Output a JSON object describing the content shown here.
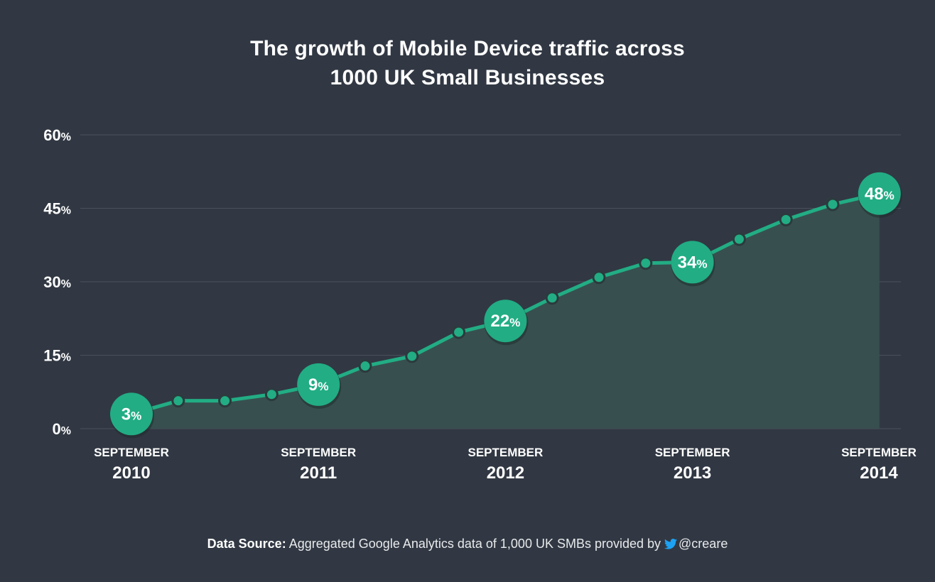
{
  "title_line1": "The growth of Mobile Device traffic across",
  "title_line2": "1000 UK Small Businesses",
  "footer": {
    "label": "Data Source:",
    "text": " Aggregated Google Analytics data of 1,000 UK SMBs provided by ",
    "handle": "@creare"
  },
  "colors": {
    "background": "#313843",
    "line": "#22ad84",
    "area": "#37504f",
    "grid": "#4a515c",
    "twitter": "#1da1f2"
  },
  "icons": {
    "twitter": "twitter-bird-icon"
  },
  "chart_data": {
    "type": "area",
    "title": "The growth of Mobile Device traffic across 1000 UK Small Businesses",
    "ylim": [
      0,
      60
    ],
    "yticks": [
      0,
      15,
      30,
      45,
      60
    ],
    "ytick_unit": "%",
    "grid": true,
    "x_labels": [
      {
        "month": "SEPTEMBER",
        "year": "2010",
        "index": 0
      },
      {
        "month": "SEPTEMBER",
        "year": "2011",
        "index": 4
      },
      {
        "month": "SEPTEMBER",
        "year": "2012",
        "index": 8
      },
      {
        "month": "SEPTEMBER",
        "year": "2013",
        "index": 12
      },
      {
        "month": "SEPTEMBER",
        "year": "2014",
        "index": 16
      }
    ],
    "values": [
      3,
      5.7,
      5.7,
      7,
      9,
      12.8,
      14.8,
      19.7,
      22,
      26.7,
      30.9,
      33.8,
      34,
      38.7,
      42.7,
      45.8,
      48
    ],
    "highlighted": [
      {
        "index": 0,
        "label": "3"
      },
      {
        "index": 4,
        "label": "9"
      },
      {
        "index": 8,
        "label": "22"
      },
      {
        "index": 12,
        "label": "34"
      },
      {
        "index": 16,
        "label": "48"
      }
    ],
    "value_unit": "%"
  }
}
